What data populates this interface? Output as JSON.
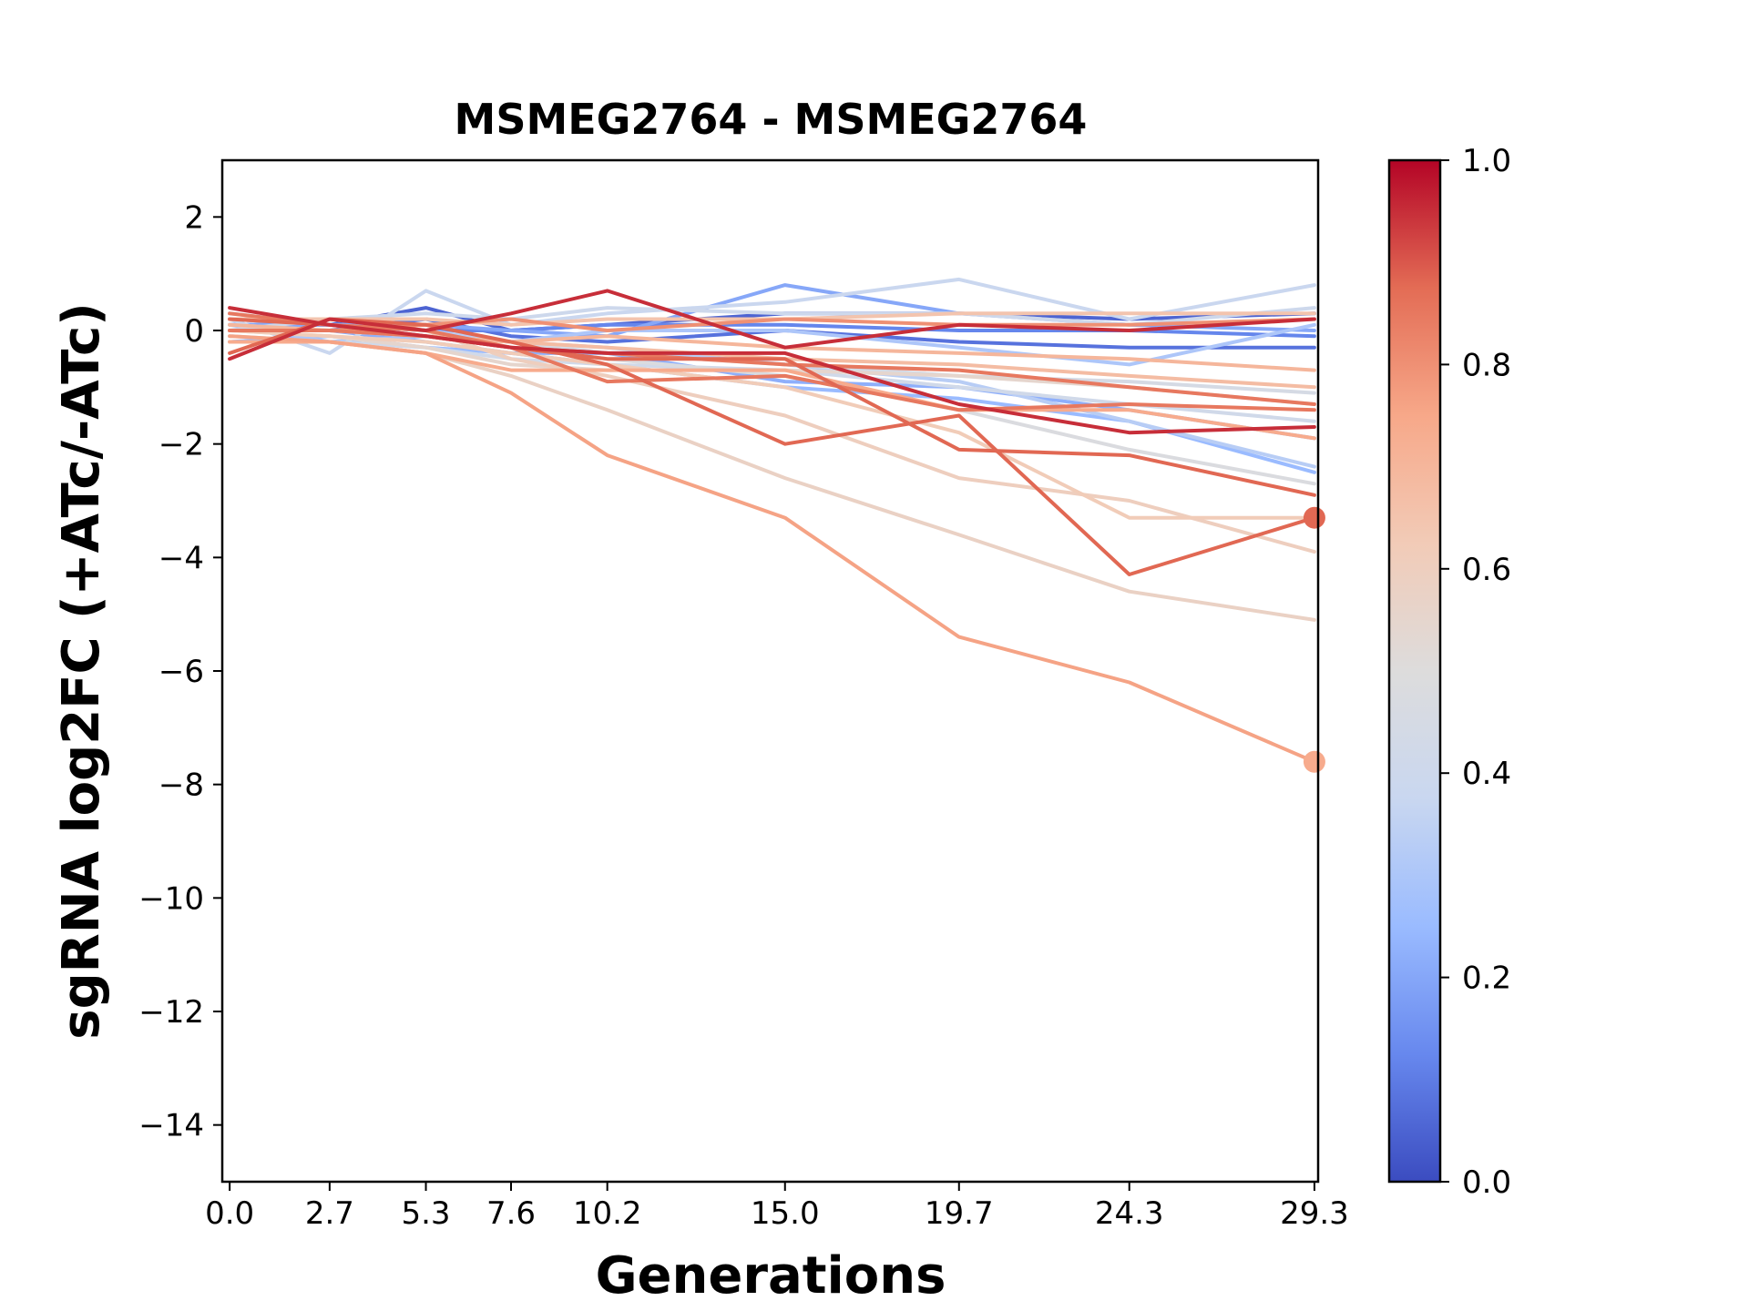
{
  "chart_data": {
    "type": "line",
    "title": "MSMEG2764 - MSMEG2764",
    "xlabel": "Generations",
    "ylabel": "sgRNA log2FC (+ATc/-ATc)",
    "x": [
      0.0,
      2.7,
      5.3,
      7.6,
      10.2,
      15.0,
      19.7,
      24.3,
      29.3
    ],
    "x_tick_labels": [
      "0.0",
      "2.7",
      "5.3",
      "7.6",
      "10.2",
      "15.0",
      "19.7",
      "24.3",
      "29.3"
    ],
    "xlim": [
      -0.2,
      29.4
    ],
    "ylim": [
      -15,
      3
    ],
    "y_ticks": [
      2,
      0,
      -2,
      -4,
      -6,
      -8,
      -10,
      -12,
      -14
    ],
    "y_tick_labels": [
      "2",
      "0",
      "−2",
      "−4",
      "−6",
      "−8",
      "−10",
      "−12",
      "−14"
    ],
    "grid": false,
    "colorbar": {
      "colormap": "coolwarm",
      "range": [
        0.0,
        1.0
      ],
      "ticks": [
        0.0,
        0.2,
        0.4,
        0.6,
        0.8,
        1.0
      ],
      "tick_labels": [
        "0.0",
        "0.2",
        "0.4",
        "0.6",
        "0.8",
        "1.0"
      ],
      "stops": [
        "#3b4cc0",
        "#6788ee",
        "#9abbff",
        "#c9d7f0",
        "#dddcdc",
        "#f2cbb7",
        "#f7a889",
        "#e36c55",
        "#b40426"
      ]
    },
    "series": [
      {
        "color_value": 0.05,
        "values": [
          0.1,
          0.1,
          0.4,
          0.0,
          0.1,
          0.3,
          0.3,
          0.2,
          0.3
        ]
      },
      {
        "color_value": 0.08,
        "values": [
          0.0,
          0.0,
          0.2,
          -0.1,
          -0.2,
          0.0,
          -0.2,
          -0.3,
          -0.3
        ]
      },
      {
        "color_value": 0.12,
        "values": [
          0.2,
          0.1,
          0.0,
          0.0,
          0.1,
          0.1,
          0.0,
          0.0,
          -0.1
        ]
      },
      {
        "color_value": 0.2,
        "values": [
          0.1,
          0.1,
          0.1,
          0.0,
          -0.1,
          0.8,
          0.3,
          0.1,
          0.0
        ]
      },
      {
        "color_value": 0.22,
        "values": [
          0.0,
          0.0,
          -0.2,
          -0.4,
          -0.4,
          -0.9,
          -1.0,
          -1.4,
          -1.9
        ]
      },
      {
        "color_value": 0.25,
        "values": [
          -0.2,
          -0.1,
          -0.3,
          -0.4,
          -0.6,
          -1.0,
          -1.2,
          -1.6,
          -2.5
        ]
      },
      {
        "color_value": 0.3,
        "values": [
          0.1,
          -0.2,
          -0.1,
          -0.2,
          0.0,
          0.0,
          -0.3,
          -0.6,
          0.1
        ]
      },
      {
        "color_value": 0.33,
        "values": [
          0.3,
          0.1,
          0.0,
          -0.2,
          -0.3,
          -0.6,
          -0.9,
          -1.6,
          -2.4
        ]
      },
      {
        "color_value": 0.38,
        "values": [
          0.2,
          -0.4,
          0.7,
          0.1,
          0.3,
          0.5,
          0.9,
          0.2,
          0.8
        ]
      },
      {
        "color_value": 0.4,
        "values": [
          0.0,
          0.2,
          0.3,
          0.2,
          0.4,
          0.3,
          0.3,
          0.1,
          0.4
        ]
      },
      {
        "color_value": 0.42,
        "values": [
          -0.1,
          -0.2,
          -0.3,
          -0.5,
          -0.6,
          -0.7,
          -1.0,
          -1.3,
          -1.6
        ]
      },
      {
        "color_value": 0.45,
        "values": [
          0.0,
          0.0,
          -0.1,
          -0.2,
          -0.4,
          -0.6,
          -0.8,
          -0.9,
          -1.1
        ]
      },
      {
        "color_value": 0.48,
        "values": [
          0.1,
          0.0,
          -0.1,
          -0.3,
          -0.5,
          -0.8,
          -1.4,
          -2.1,
          -2.7
        ]
      },
      {
        "color_value": 0.55,
        "values": [
          0.0,
          -0.1,
          -0.3,
          -0.6,
          -0.7,
          -0.7,
          -0.8,
          -1.0,
          -1.3
        ]
      },
      {
        "color_value": 0.58,
        "values": [
          -0.2,
          -0.2,
          -0.4,
          -0.8,
          -1.4,
          -2.6,
          -3.6,
          -4.6,
          -5.1
        ]
      },
      {
        "color_value": 0.6,
        "values": [
          0.2,
          0.2,
          0.0,
          -0.5,
          -0.8,
          -1.5,
          -2.6,
          -3.0,
          -3.9
        ]
      },
      {
        "color_value": 0.62,
        "values": [
          0.0,
          -0.1,
          -0.2,
          -0.4,
          -0.6,
          -1.0,
          -1.8,
          -3.3,
          -3.3
        ]
      },
      {
        "color_value": 0.65,
        "values": [
          0.2,
          0.2,
          0.2,
          0.1,
          0.2,
          0.2,
          0.3,
          0.3,
          0.3
        ]
      },
      {
        "color_value": 0.68,
        "values": [
          0.0,
          0.0,
          -0.1,
          -0.2,
          -0.3,
          -0.5,
          -0.6,
          -0.8,
          -1.0
        ]
      },
      {
        "color_value": 0.7,
        "values": [
          0.1,
          0.0,
          -0.1,
          -0.2,
          -0.1,
          -0.3,
          -0.4,
          -0.5,
          -0.7
        ]
      },
      {
        "color_value": 0.74,
        "values": [
          -0.2,
          -0.2,
          -0.4,
          -0.7,
          -0.7,
          -0.7,
          -1.4,
          -1.4,
          -1.9
        ]
      },
      {
        "color_value": 0.76,
        "values": [
          -0.1,
          -0.2,
          -0.4,
          -1.1,
          -2.2,
          -3.3,
          -5.4,
          -6.2,
          -7.6
        ]
      },
      {
        "color_value": 0.8,
        "values": [
          0.0,
          0.0,
          0.1,
          0.2,
          0.0,
          0.2,
          0.1,
          0.1,
          0.2
        ]
      },
      {
        "color_value": 0.85,
        "values": [
          0.3,
          0.1,
          0.0,
          -0.3,
          -0.9,
          -0.8,
          -1.4,
          -1.3,
          -1.4
        ]
      },
      {
        "color_value": 0.85,
        "values": [
          0.0,
          0.0,
          -0.1,
          -0.3,
          -0.4,
          -0.6,
          -0.7,
          -1.0,
          -1.3
        ]
      },
      {
        "color_value": 0.88,
        "values": [
          -0.4,
          0.2,
          0.1,
          -0.2,
          -0.6,
          -2.0,
          -1.5,
          -4.3,
          -3.3
        ]
      },
      {
        "color_value": 0.88,
        "values": [
          0.2,
          0.1,
          -0.1,
          -0.3,
          -0.5,
          -0.5,
          -2.1,
          -2.2,
          -2.9
        ]
      },
      {
        "color_value": 0.95,
        "values": [
          0.4,
          0.1,
          -0.1,
          -0.3,
          -0.4,
          -0.4,
          -1.3,
          -1.8,
          -1.7
        ]
      },
      {
        "color_value": 0.95,
        "values": [
          -0.5,
          0.2,
          0.0,
          0.3,
          0.7,
          -0.3,
          0.1,
          0.0,
          0.2
        ]
      }
    ],
    "end_markers": [
      {
        "x": 29.3,
        "y": -3.3,
        "color_value": 0.88
      },
      {
        "x": 29.3,
        "y": -7.6,
        "color_value": 0.74
      }
    ]
  }
}
